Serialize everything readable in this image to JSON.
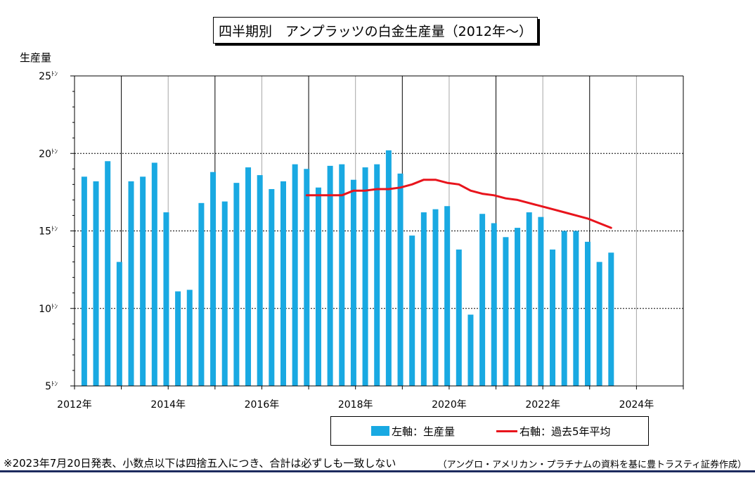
{
  "chart_data": {
    "type": "bar",
    "title": "四半期別　アンプラッツの白金生産量（2012年～）",
    "ylabel": "生産量",
    "ylim": [
      5,
      25
    ],
    "yticks": [
      5,
      10,
      15,
      20,
      25
    ],
    "ytick_unit": "ﾄﾝ",
    "xlim": [
      "2012-01",
      "2025-01"
    ],
    "xticks": [
      "2012年",
      "2014年",
      "2016年",
      "2018年",
      "2020年",
      "2022年",
      "2024年"
    ],
    "grid": true,
    "legend_position": "bottom",
    "x": [
      "2012-03",
      "2012-06",
      "2012-09",
      "2012-12",
      "2013-03",
      "2013-06",
      "2013-09",
      "2013-12",
      "2014-03",
      "2014-06",
      "2014-09",
      "2014-12",
      "2015-03",
      "2015-06",
      "2015-09",
      "2015-12",
      "2016-03",
      "2016-06",
      "2016-09",
      "2016-12",
      "2017-03",
      "2017-06",
      "2017-09",
      "2017-12",
      "2018-03",
      "2018-06",
      "2018-09",
      "2018-12",
      "2019-03",
      "2019-06",
      "2019-09",
      "2019-12",
      "2020-03",
      "2020-06",
      "2020-09",
      "2020-12",
      "2021-03",
      "2021-06",
      "2021-09",
      "2021-12",
      "2022-03",
      "2022-06",
      "2022-09",
      "2022-12",
      "2023-03",
      "2023-06"
    ],
    "series": [
      {
        "name": "左軸：生産量",
        "type": "bar",
        "color": "#19A9E2",
        "values": [
          18.5,
          18.2,
          19.5,
          13.0,
          18.2,
          18.5,
          19.4,
          16.2,
          11.1,
          11.2,
          16.8,
          18.8,
          16.9,
          18.1,
          19.1,
          18.6,
          17.7,
          18.2,
          19.3,
          19.0,
          17.8,
          19.2,
          19.3,
          18.3,
          19.1,
          19.3,
          20.2,
          18.7,
          14.7,
          16.2,
          16.4,
          16.6,
          13.8,
          9.6,
          16.1,
          15.5,
          14.6,
          15.2,
          16.2,
          15.9,
          13.8,
          15.0,
          15.0,
          14.3,
          13.0,
          13.6
        ]
      },
      {
        "name": "右軸：過去5年平均",
        "type": "line",
        "color": "#E8141C",
        "values": [
          null,
          null,
          null,
          null,
          null,
          null,
          null,
          null,
          null,
          null,
          null,
          null,
          null,
          null,
          null,
          null,
          null,
          null,
          null,
          17.3,
          17.3,
          17.3,
          17.3,
          17.6,
          17.6,
          17.7,
          17.7,
          17.8,
          18.0,
          18.3,
          18.3,
          18.1,
          18.0,
          17.6,
          17.4,
          17.3,
          17.1,
          17.0,
          16.8,
          16.6,
          16.4,
          16.2,
          16.0,
          15.8,
          15.5,
          15.2
        ]
      }
    ]
  },
  "notes": {
    "footnote": "※2023年7月20日発表、小数点以下は四捨五入につき、合計は必ずしも一致しない",
    "source": "（アングロ・アメリカン・プラチナムの資料を基に豊トラスティ証券作成）"
  }
}
